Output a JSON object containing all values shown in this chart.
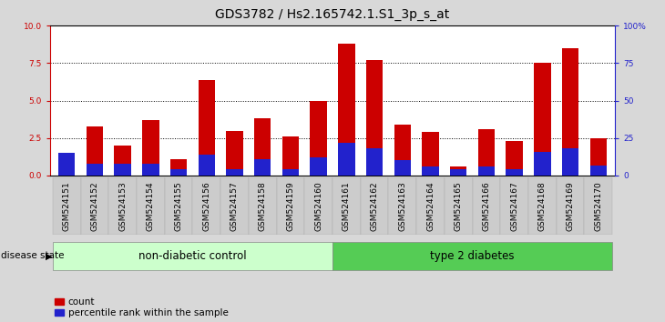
{
  "title": "GDS3782 / Hs2.165742.1.S1_3p_s_at",
  "samples": [
    "GSM524151",
    "GSM524152",
    "GSM524153",
    "GSM524154",
    "GSM524155",
    "GSM524156",
    "GSM524157",
    "GSM524158",
    "GSM524159",
    "GSM524160",
    "GSM524161",
    "GSM524162",
    "GSM524163",
    "GSM524164",
    "GSM524165",
    "GSM524166",
    "GSM524167",
    "GSM524168",
    "GSM524169",
    "GSM524170"
  ],
  "count_values": [
    1.3,
    3.3,
    2.0,
    3.7,
    1.1,
    6.4,
    3.0,
    3.8,
    2.6,
    5.0,
    8.8,
    7.7,
    3.4,
    2.9,
    0.6,
    3.1,
    2.3,
    7.5,
    8.5,
    2.5
  ],
  "percentile_values": [
    15,
    8,
    8,
    8,
    4,
    14,
    4,
    11,
    4,
    12,
    22,
    18,
    10,
    6,
    4,
    6,
    4,
    16,
    18,
    6.5
  ],
  "non_diabetic_count": 10,
  "bar_color_red": "#cc0000",
  "bar_color_blue": "#2222cc",
  "group1_label": "non-diabetic control",
  "group2_label": "type 2 diabetes",
  "group1_color": "#ccffcc",
  "group2_color": "#55cc55",
  "ylim_left": [
    0,
    10
  ],
  "ylim_right": [
    0,
    100
  ],
  "yticks_left": [
    0,
    2.5,
    5.0,
    7.5,
    10
  ],
  "yticks_right": [
    0,
    25,
    50,
    75,
    100
  ],
  "bar_width": 0.6,
  "legend_count_label": "count",
  "legend_pct_label": "percentile rank within the sample",
  "disease_state_label": "disease state",
  "left_tick_color": "#cc0000",
  "right_tick_color": "#2222cc",
  "title_fontsize": 10,
  "tick_fontsize": 6.5,
  "group_label_fontsize": 8.5,
  "legend_fontsize": 7.5,
  "disease_state_fontsize": 7.5,
  "bg_color": "#d8d8d8",
  "plot_bg_color": "#ffffff"
}
